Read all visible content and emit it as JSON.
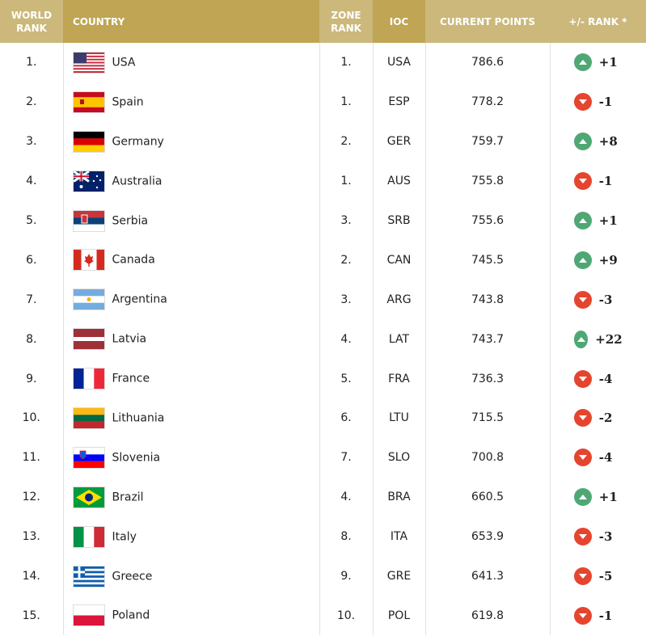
{
  "headers": {
    "world_rank": "WORLD RANK",
    "country": "COUNTRY",
    "zone_rank": "ZONE RANK",
    "ioc": "IOC",
    "points": "CURRENT POINTS",
    "change": "+/- RANK *"
  },
  "colors": {
    "header_light": "#cbb87a",
    "header_dark": "#bfa554",
    "up": "#4fa874",
    "down": "#e5452f"
  },
  "rows": [
    {
      "rank": "1.",
      "country": "USA",
      "zone": "1.",
      "ioc": "USA",
      "points": "786.6",
      "change": "+1",
      "dir": "up"
    },
    {
      "rank": "2.",
      "country": "Spain",
      "zone": "1.",
      "ioc": "ESP",
      "points": "778.2",
      "change": "-1",
      "dir": "down"
    },
    {
      "rank": "3.",
      "country": "Germany",
      "zone": "2.",
      "ioc": "GER",
      "points": "759.7",
      "change": "+8",
      "dir": "up"
    },
    {
      "rank": "4.",
      "country": "Australia",
      "zone": "1.",
      "ioc": "AUS",
      "points": "755.8",
      "change": "-1",
      "dir": "down"
    },
    {
      "rank": "5.",
      "country": "Serbia",
      "zone": "3.",
      "ioc": "SRB",
      "points": "755.6",
      "change": "+1",
      "dir": "up"
    },
    {
      "rank": "6.",
      "country": "Canada",
      "zone": "2.",
      "ioc": "CAN",
      "points": "745.5",
      "change": "+9",
      "dir": "up"
    },
    {
      "rank": "7.",
      "country": "Argentina",
      "zone": "3.",
      "ioc": "ARG",
      "points": "743.8",
      "change": "-3",
      "dir": "down"
    },
    {
      "rank": "8.",
      "country": "Latvia",
      "zone": "4.",
      "ioc": "LAT",
      "points": "743.7",
      "change": "+22",
      "dir": "up"
    },
    {
      "rank": "9.",
      "country": "France",
      "zone": "5.",
      "ioc": "FRA",
      "points": "736.3",
      "change": "-4",
      "dir": "down"
    },
    {
      "rank": "10.",
      "country": "Lithuania",
      "zone": "6.",
      "ioc": "LTU",
      "points": "715.5",
      "change": "-2",
      "dir": "down"
    },
    {
      "rank": "11.",
      "country": "Slovenia",
      "zone": "7.",
      "ioc": "SLO",
      "points": "700.8",
      "change": "-4",
      "dir": "down"
    },
    {
      "rank": "12.",
      "country": "Brazil",
      "zone": "4.",
      "ioc": "BRA",
      "points": "660.5",
      "change": "+1",
      "dir": "up"
    },
    {
      "rank": "13.",
      "country": "Italy",
      "zone": "8.",
      "ioc": "ITA",
      "points": "653.9",
      "change": "-3",
      "dir": "down"
    },
    {
      "rank": "14.",
      "country": "Greece",
      "zone": "9.",
      "ioc": "GRE",
      "points": "641.3",
      "change": "-5",
      "dir": "down"
    },
    {
      "rank": "15.",
      "country": "Poland",
      "zone": "10.",
      "ioc": "POL",
      "points": "619.8",
      "change": "-1",
      "dir": "down"
    }
  ]
}
